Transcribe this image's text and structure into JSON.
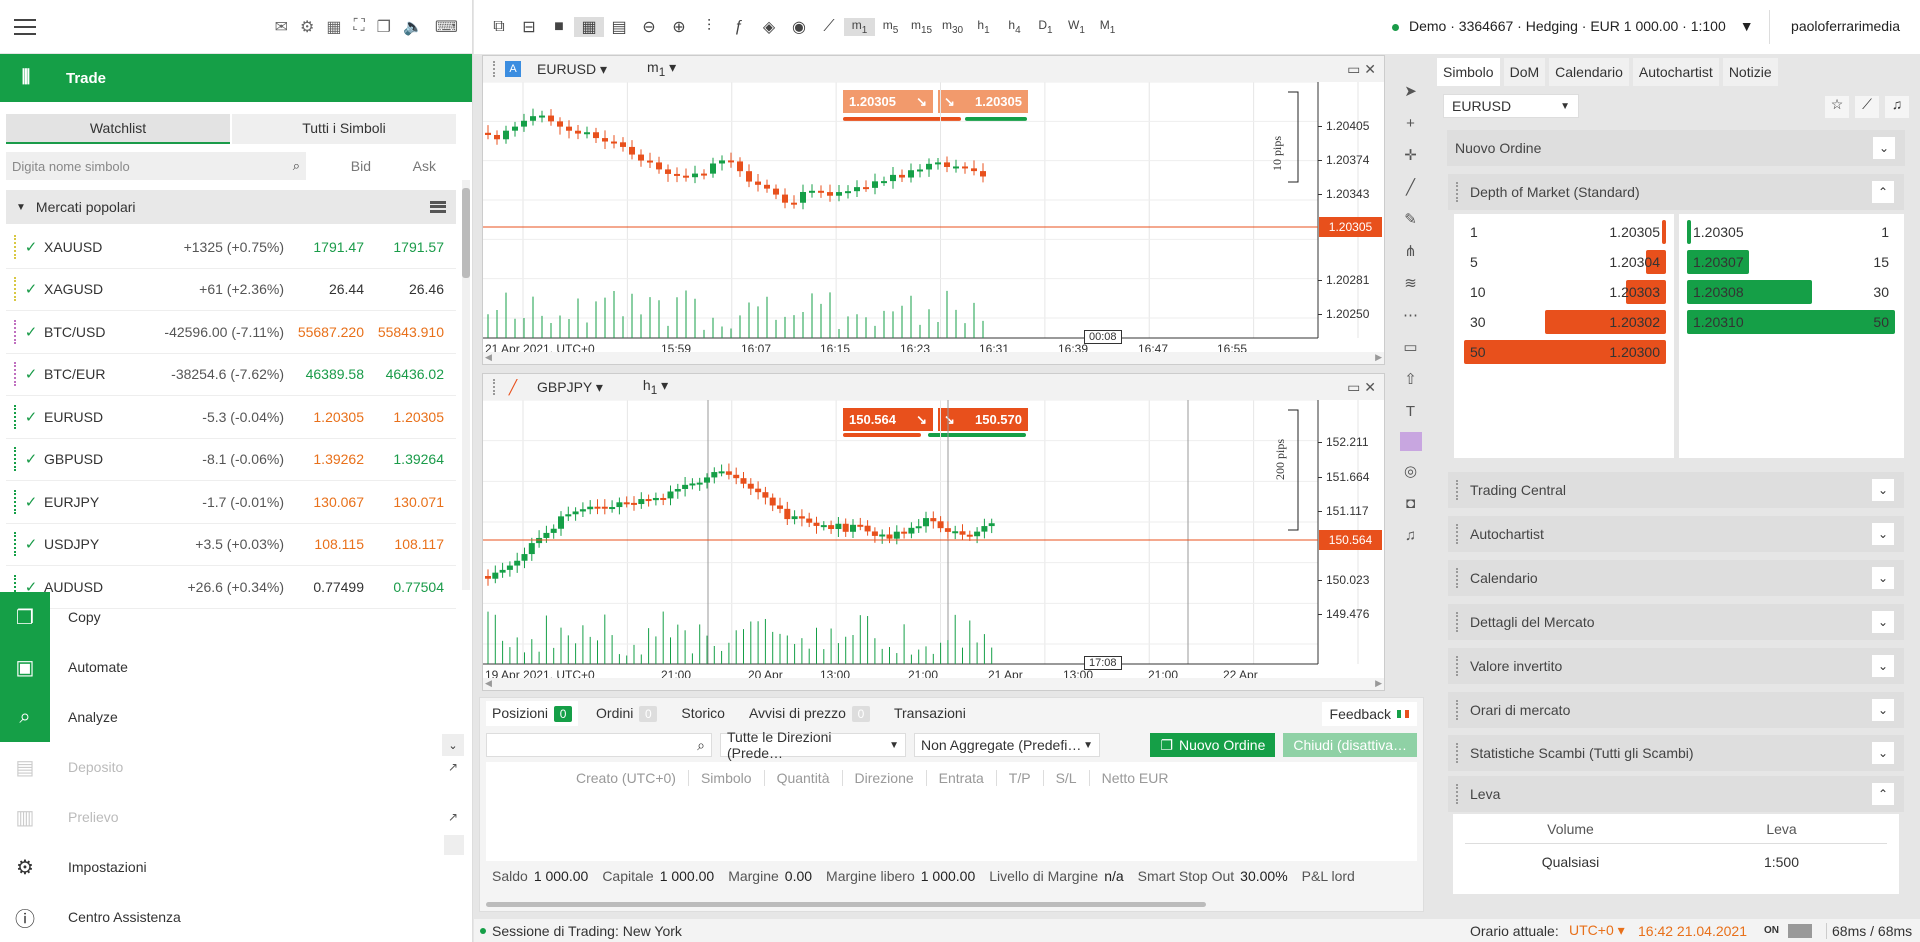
{
  "left": {
    "trade_label": "Trade",
    "tabs": [
      "Watchlist",
      "Tutti i Simboli"
    ],
    "search_placeholder": "Digita nome simbolo",
    "col_bid": "Bid",
    "col_ask": "Ask",
    "group": "Mercati popolari",
    "watchlist": [
      {
        "sym": "XAUUSD",
        "chg": "+1325 (+0.75%)",
        "bid": "1791.47",
        "ask": "1791.57"
      },
      {
        "sym": "XAGUSD",
        "chg": "+61 (+2.36%)",
        "bid": "26.44",
        "ask": "26.46"
      },
      {
        "sym": "BTC/USD",
        "chg": "-42596.00 (-7.11%)",
        "bid": "55687.220",
        "ask": "55843.910"
      },
      {
        "sym": "BTC/EUR",
        "chg": "-38254.6 (-7.62%)",
        "bid": "46389.58",
        "ask": "46436.02"
      },
      {
        "sym": "EURUSD",
        "chg": "-5.3 (-0.04%)",
        "bid": "1.20305",
        "ask": "1.20305"
      },
      {
        "sym": "GBPUSD",
        "chg": "-8.1 (-0.06%)",
        "bid": "1.39262",
        "ask": "1.39264"
      },
      {
        "sym": "EURJPY",
        "chg": "-1.7 (-0.01%)",
        "bid": "130.067",
        "ask": "130.071"
      },
      {
        "sym": "USDJPY",
        "chg": "+3.5 (+0.03%)",
        "bid": "108.115",
        "ask": "108.117"
      },
      {
        "sym": "AUDUSD",
        "chg": "+26.6 (+0.34%)",
        "bid": "0.77499",
        "ask": "0.77504"
      }
    ],
    "nav": {
      "copy": "Copy",
      "automate": "Automate",
      "analyze": "Analyze",
      "deposit": "Deposito",
      "withdraw": "Prelievo",
      "settings": "Impostazioni",
      "help": "Centro Assistenza"
    }
  },
  "toolbar": {
    "timeframes": [
      {
        "main": "m",
        "sub": "1"
      },
      {
        "main": "m",
        "sub": "5"
      },
      {
        "main": "m",
        "sub": "15"
      },
      {
        "main": "m",
        "sub": "30"
      },
      {
        "main": "h",
        "sub": "1"
      },
      {
        "main": "h",
        "sub": "4"
      },
      {
        "main": "D",
        "sub": "1"
      },
      {
        "main": "W",
        "sub": "1"
      },
      {
        "main": "M",
        "sub": "1"
      }
    ],
    "account": "Demo · 3364667 · Hedging · EUR 1 000.00 · 1:100",
    "user": "paoloferrarimedia"
  },
  "charts": [
    {
      "symbol": "EURUSD",
      "tf": "m",
      "tf_sub": "1",
      "sell": "1.20305",
      "buy": "1.20305",
      "range_label": "10 pips",
      "current": "1.20305",
      "yticks": [
        "1.20405",
        "1.20374",
        "1.20343",
        "1.20281",
        "1.20250"
      ],
      "xticks": [
        "21 Apr 2021, UTC+0",
        "15:59",
        "16:07",
        "16:15",
        "16:23",
        "16:31",
        "16:39",
        "16:47",
        "16:55"
      ],
      "cursor_time": "00:08"
    },
    {
      "symbol": "GBPJPY",
      "tf": "h",
      "tf_sub": "1",
      "sell": "150.564",
      "buy": "150.570",
      "range_label": "200 pips",
      "current": "150.564",
      "yticks": [
        "152.211",
        "151.664",
        "151.117",
        "150.023",
        "149.476"
      ],
      "xticks": [
        "19 Apr 2021, UTC+0",
        "21:00",
        "20 Apr",
        "13:00",
        "21:00",
        "21 Apr",
        "13:00",
        "21:00",
        "22 Apr"
      ],
      "cursor_time": "17:08"
    }
  ],
  "bottom": {
    "tabs": [
      {
        "label": "Posizioni",
        "count": "0"
      },
      {
        "label": "Ordini",
        "count": "0"
      },
      {
        "label": "Storico",
        "count": ""
      },
      {
        "label": "Avvisi di prezzo",
        "count": "0"
      },
      {
        "label": "Transazioni",
        "count": ""
      }
    ],
    "feedback": "Feedback",
    "filter_dir": "Tutte le Direzioni (Prede…",
    "filter_agg": "Non Aggregate (Predefi…",
    "new_order": "Nuovo Ordine",
    "close_disabled": "Chiudi (disattiva…",
    "columns": [
      "Creato (UTC+0)",
      "Simbolo",
      "Quantità",
      "Direzione",
      "Entrata",
      "T/P",
      "S/L",
      "Netto EUR"
    ],
    "summary": [
      {
        "k": "Saldo",
        "v": "1 000.00"
      },
      {
        "k": "Capitale",
        "v": "1 000.00"
      },
      {
        "k": "Margine",
        "v": "0.00"
      },
      {
        "k": "Margine libero",
        "v": "1 000.00"
      },
      {
        "k": "Livello di Margine",
        "v": "n/a"
      },
      {
        "k": "Smart Stop Out",
        "v": "30.00%"
      },
      {
        "k": "P&L lord",
        "v": ""
      }
    ]
  },
  "status": {
    "session": "Sessione di Trading: New York",
    "time_label": "Orario attuale:",
    "tz": "UTC+0",
    "time": "16:42 21.04.2021",
    "on": "ON",
    "latency": "68ms / 68ms"
  },
  "right": {
    "tabs": [
      "Simbolo",
      "DoM",
      "Calendario",
      "Autochartist",
      "Notizie"
    ],
    "symbol": "EURUSD",
    "new_order": "Nuovo Ordine",
    "dom_title": "Depth of Market (Standard)",
    "dom_sell": [
      {
        "vol": "1",
        "price": "1.20305",
        "fill": 0.02
      },
      {
        "vol": "5",
        "price": "1.20304",
        "fill": 0.1
      },
      {
        "vol": "10",
        "price": "1.20303",
        "fill": 0.2
      },
      {
        "vol": "30",
        "price": "1.20302",
        "fill": 0.6
      },
      {
        "vol": "50",
        "price": "1.20300",
        "fill": 1.0
      }
    ],
    "dom_buy": [
      {
        "vol": "1",
        "price": "1.20305",
        "fill": 0.02
      },
      {
        "vol": "15",
        "price": "1.20307",
        "fill": 0.3
      },
      {
        "vol": "30",
        "price": "1.20308",
        "fill": 0.6
      },
      {
        "vol": "50",
        "price": "1.20310",
        "fill": 1.0
      }
    ],
    "sections": [
      "Trading Central",
      "Autochartist",
      "Calendario",
      "Dettagli del Mercato",
      "Valore invertito",
      "Orari di mercato",
      "Statistiche Scambi (Tutti gli Scambi)"
    ],
    "leva_title": "Leva",
    "leva_cols": [
      "Volume",
      "Leva"
    ],
    "leva_row": [
      "Qualsiasi",
      "1:500"
    ]
  },
  "colors": {
    "green": "#159f47",
    "orange": "#e8501c",
    "candle_up": "#159f47",
    "candle_down": "#e8501c"
  }
}
